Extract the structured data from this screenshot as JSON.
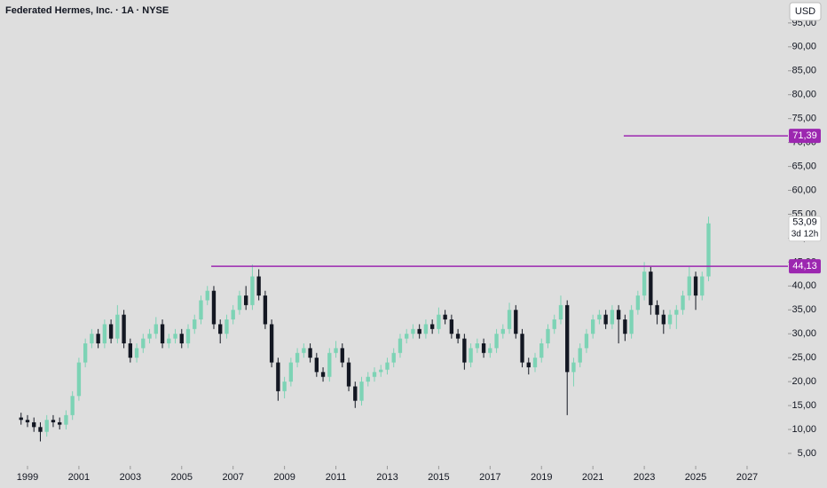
{
  "chart_data": {
    "type": "candlestick",
    "title": "Federated Hermes, Inc. · 1A · NYSE",
    "currency": "USD",
    "up_color": "#7dd3b5",
    "down_color": "#131722",
    "x": [
      1998.75,
      1999,
      1999.25,
      1999.5,
      1999.75,
      2000,
      2000.25,
      2000.5,
      2000.75,
      2001,
      2001.25,
      2001.5,
      2001.75,
      2002,
      2002.25,
      2002.5,
      2002.75,
      2003,
      2003.25,
      2003.5,
      2003.75,
      2004,
      2004.25,
      2004.5,
      2004.75,
      2005,
      2005.25,
      2005.5,
      2005.75,
      2006,
      2006.25,
      2006.5,
      2006.75,
      2007,
      2007.25,
      2007.5,
      2007.75,
      2008,
      2008.25,
      2008.5,
      2008.75,
      2009,
      2009.25,
      2009.5,
      2009.75,
      2010,
      2010.25,
      2010.5,
      2010.75,
      2011,
      2011.25,
      2011.5,
      2011.75,
      2012,
      2012.25,
      2012.5,
      2012.75,
      2013,
      2013.25,
      2013.5,
      2013.75,
      2014,
      2014.25,
      2014.5,
      2014.75,
      2015,
      2015.25,
      2015.5,
      2015.75,
      2016,
      2016.25,
      2016.5,
      2016.75,
      2017,
      2017.25,
      2017.5,
      2017.75,
      2018,
      2018.25,
      2018.5,
      2018.75,
      2019,
      2019.25,
      2019.5,
      2019.75,
      2020,
      2020.25,
      2020.5,
      2020.75,
      2021,
      2021.25,
      2021.5,
      2021.75,
      2022,
      2022.25,
      2022.5,
      2022.75,
      2023,
      2023.25,
      2023.5,
      2023.75,
      2024,
      2024.25,
      2024.5,
      2024.75,
      2025,
      2025.25,
      2025.5
    ],
    "open": [
      12.5,
      12,
      11.5,
      10.5,
      9.5,
      12,
      11.5,
      11,
      13,
      17,
      24,
      28,
      30,
      28,
      32,
      29,
      34,
      28,
      25,
      27,
      29,
      30,
      32,
      28,
      29,
      30,
      28,
      31,
      33,
      37,
      39,
      32,
      30,
      33,
      35,
      38,
      36,
      42,
      38,
      32,
      24,
      18,
      20,
      24,
      26,
      27,
      25,
      22,
      21,
      26,
      27,
      24,
      19,
      16,
      20,
      21,
      22,
      22.5,
      24,
      26,
      29,
      30,
      31,
      30,
      32,
      31,
      34,
      33,
      30,
      29,
      24,
      27,
      28,
      26,
      27,
      30,
      31,
      35,
      30,
      24,
      23,
      25,
      28,
      31,
      33,
      36,
      22,
      24,
      27,
      30,
      33,
      34,
      32,
      35,
      33,
      30,
      35,
      38,
      43,
      36,
      34,
      32,
      34,
      35,
      38,
      42,
      38,
      42
    ],
    "high": [
      13.5,
      13,
      12.5,
      11.5,
      13,
      13,
      12.5,
      14,
      18,
      25,
      29,
      31,
      31,
      33,
      33,
      36,
      35,
      29,
      28,
      30,
      31,
      33.5,
      33,
      30,
      31,
      31,
      32,
      34,
      38,
      40,
      40,
      33,
      34,
      36,
      39,
      40,
      44.5,
      43.5,
      39,
      33,
      25,
      21,
      25,
      27,
      28,
      28,
      26,
      23,
      27,
      28.5,
      28,
      25,
      20,
      21,
      22,
      23,
      23.5,
      25,
      27,
      30,
      31,
      32,
      32,
      33,
      33,
      35.5,
      35,
      34,
      31,
      30,
      28,
      29,
      29,
      28,
      31,
      32,
      36.5,
      36,
      31,
      25,
      26,
      29,
      32,
      34,
      38,
      37,
      25,
      28,
      31,
      34,
      35,
      35,
      36,
      36,
      34,
      36,
      39,
      45,
      44,
      37,
      35,
      35,
      36,
      39,
      44,
      43,
      43,
      54.5
    ],
    "low": [
      11,
      10.5,
      9.5,
      7.5,
      8.5,
      10.5,
      10,
      10,
      12,
      16,
      23,
      27,
      27,
      27,
      28,
      28,
      27,
      24,
      24,
      26,
      28,
      29,
      27,
      27,
      28,
      27,
      27,
      30,
      32,
      36,
      31,
      28,
      29,
      32,
      34,
      35,
      35,
      37,
      31,
      23,
      16,
      16.5,
      19,
      23,
      25,
      24,
      21,
      20,
      20,
      25,
      23,
      18,
      14.5,
      15,
      19,
      20,
      21,
      21.5,
      23,
      25,
      28,
      29,
      29,
      29,
      30,
      30,
      32,
      29,
      28,
      22.5,
      23,
      26,
      25,
      25,
      26,
      29,
      30,
      29,
      23,
      21.5,
      22,
      24,
      27,
      30,
      32,
      13,
      19,
      23,
      26,
      29,
      32,
      31,
      31,
      28,
      28.5,
      29,
      34,
      37,
      34,
      32,
      30,
      31,
      31,
      34,
      37,
      35,
      37,
      41
    ],
    "close": [
      12,
      11.5,
      10.5,
      9.5,
      12,
      11.5,
      11,
      13,
      17,
      24,
      28,
      30,
      28,
      32,
      29,
      34,
      28,
      25,
      27,
      29,
      30,
      32,
      28,
      29,
      30,
      28,
      31,
      33,
      37,
      39,
      32,
      30,
      33,
      35,
      38,
      36,
      42,
      38,
      32,
      24,
      18,
      20,
      24,
      26,
      27,
      25,
      22,
      21,
      26,
      27,
      24,
      19,
      16,
      20,
      21,
      22,
      22.5,
      24,
      26,
      29,
      30,
      31,
      30,
      32,
      31,
      34,
      33,
      30,
      29,
      24,
      27,
      28,
      26,
      27,
      30,
      31,
      35,
      30,
      24,
      23,
      25,
      28,
      31,
      33,
      36,
      22,
      24,
      27,
      30,
      33,
      34,
      32,
      35,
      33,
      30,
      35,
      38,
      43,
      36,
      34,
      32,
      34,
      35,
      38,
      42,
      38,
      42,
      53.09
    ],
    "last_label": "53,09",
    "countdown": "3d 12h",
    "levels": [
      {
        "value": 44.13,
        "label": "44,13",
        "x_start": 2006.15,
        "color": "#9c27b0"
      },
      {
        "value": 71.39,
        "label": "71,39",
        "x_start": 2022.2,
        "color": "#9c27b0"
      }
    ],
    "xlim": [
      1997.93,
      2028.59
    ],
    "xticks": [
      1999,
      2001,
      2003,
      2005,
      2007,
      2009,
      2011,
      2013,
      2015,
      2017,
      2019,
      2021,
      2023,
      2025,
      2027
    ],
    "ylim": [
      2.4,
      99.8
    ],
    "yticks": [
      {
        "value": 5,
        "label": "5,00"
      },
      {
        "value": 10,
        "label": "10,00"
      },
      {
        "value": 15,
        "label": "15,00"
      },
      {
        "value": 20,
        "label": "20,00"
      },
      {
        "value": 25,
        "label": "25,00"
      },
      {
        "value": 30,
        "label": "30,00"
      },
      {
        "value": 35,
        "label": "35,00"
      },
      {
        "value": 40,
        "label": "40,00"
      },
      {
        "value": 45,
        "label": "45,00"
      },
      {
        "value": 50,
        "label": "50,00"
      },
      {
        "value": 55,
        "label": "55,00"
      },
      {
        "value": 60,
        "label": "60,00"
      },
      {
        "value": 65,
        "label": "65,00"
      },
      {
        "value": 70,
        "label": "70,00"
      },
      {
        "value": 75,
        "label": "75,00"
      },
      {
        "value": 80,
        "label": "80,00"
      },
      {
        "value": 85,
        "label": "85,00"
      },
      {
        "value": 90,
        "label": "90,00"
      },
      {
        "value": 95,
        "label": "95,00"
      }
    ],
    "grid": false
  }
}
